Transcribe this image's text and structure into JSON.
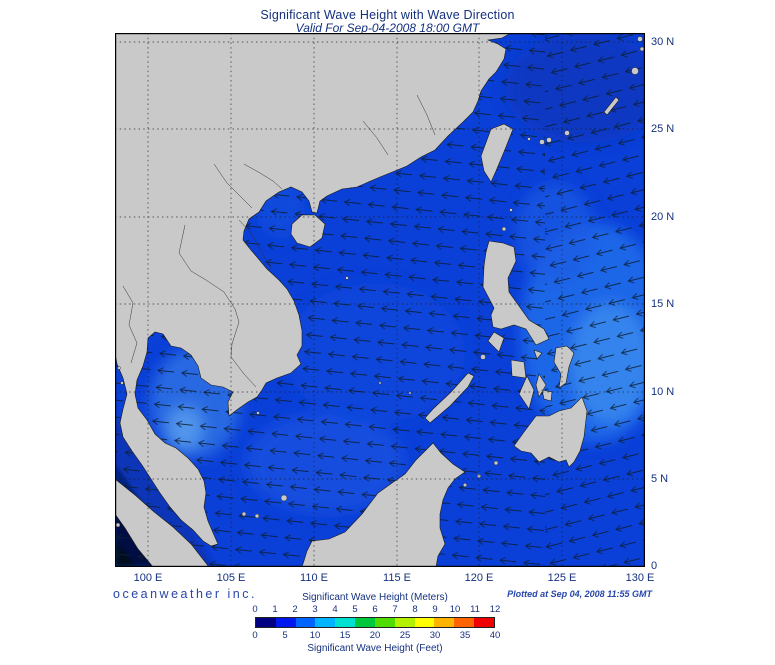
{
  "header": {
    "title": "Significant Wave Height with Wave Direction",
    "subtitle": "Valid For Sep-04-2008 18:00 GMT"
  },
  "axes": {
    "x_ticks": [
      "100 E",
      "105 E",
      "110 E",
      "115 E",
      "120 E",
      "125 E",
      "130 E"
    ],
    "y_ticks": [
      "30 N",
      "25 N",
      "20 N",
      "15 N",
      "10 N",
      "5 N",
      "0"
    ]
  },
  "footer": {
    "brand": "oceanweather inc.",
    "plotted": "Plotted at Sep 04, 2008 11:55 GMT"
  },
  "legend": {
    "title_meters": "Significant Wave Height (Meters)",
    "title_feet": "Significant Wave Height (Feet)",
    "meters_ticks": [
      "0",
      "1",
      "2",
      "3",
      "4",
      "5",
      "6",
      "7",
      "8",
      "9",
      "10",
      "11",
      "12"
    ],
    "feet_ticks": [
      "0",
      "5",
      "10",
      "15",
      "20",
      "25",
      "30",
      "35",
      "40"
    ],
    "colors": [
      "#000080",
      "#0018f0",
      "#0064ff",
      "#00b4ff",
      "#00e0d0",
      "#00c83c",
      "#50dc00",
      "#b4f000",
      "#ffff00",
      "#ffb400",
      "#ff6400",
      "#f00000"
    ]
  },
  "map": {
    "colors": {
      "ocean_base": "#0a3fd8",
      "land": "#c9c9c9",
      "coast": "#1a1a1a",
      "dark_corner": "#021043",
      "arrow": "#0d1f33",
      "grid": "#1c1c1c",
      "frame": "#000000"
    }
  }
}
